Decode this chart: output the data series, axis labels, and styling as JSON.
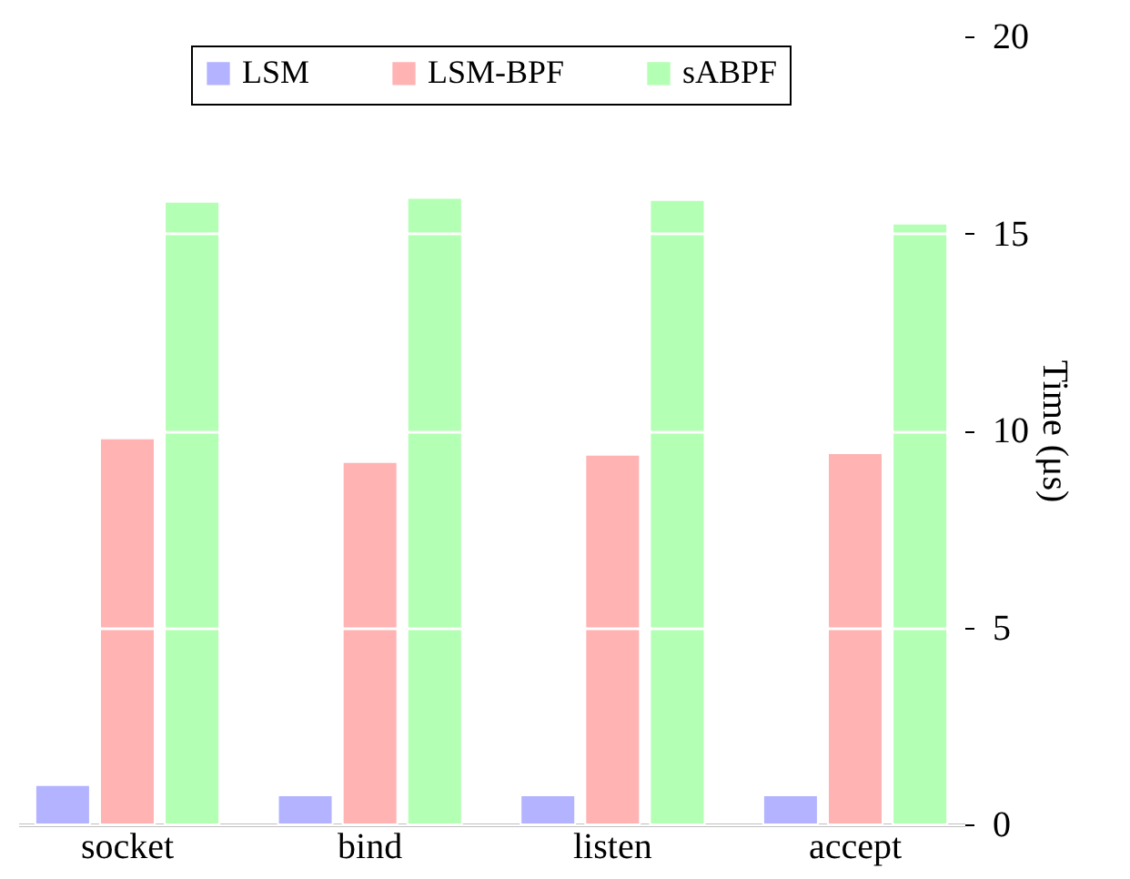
{
  "chart_data": {
    "type": "bar",
    "ylabel": "Time (μs)",
    "categories": [
      "socket",
      "bind",
      "listen",
      "accept"
    ],
    "series": [
      {
        "name": "LSM",
        "color": "#b3b3ff",
        "values": [
          1.0,
          0.74,
          0.74,
          0.74
        ]
      },
      {
        "name": "LSM-BPF",
        "color": "#ffb3b3",
        "values": [
          9.8,
          9.2,
          9.38,
          9.42
        ]
      },
      {
        "name": "sABPF",
        "color": "#b3ffb3",
        "values": [
          15.8,
          15.9,
          15.85,
          15.25
        ]
      }
    ],
    "ylim": [
      0,
      20
    ],
    "yticks": [
      0,
      5,
      10,
      15,
      20
    ],
    "grid": "y",
    "legend": "top"
  }
}
